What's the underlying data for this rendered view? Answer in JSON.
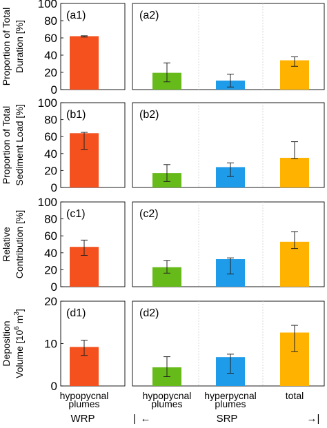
{
  "figure": {
    "x_category_labels": [
      [
        "hypopycnal",
        "plumes"
      ],
      [
        "hypopycnal",
        "plumes"
      ],
      [
        "hyperpycnal",
        "plumes"
      ],
      [
        "total"
      ]
    ],
    "bottom": {
      "wrp": "WRP",
      "sep": "|",
      "left_arrow": "←",
      "srp": "SRP",
      "right_arrow": "→|"
    }
  },
  "colors": {
    "wrp_hypopycnal": "#f4511e",
    "srp_hypopycnal": "#66bb1a",
    "srp_hyperpycnal": "#1e9be9",
    "srp_total": "#ffb300"
  },
  "chart_data": [
    {
      "type": "bar",
      "panels": [
        "(a1)",
        "(a2)"
      ],
      "ylabel_lines": [
        "Proportion of Total",
        "Duration [%]"
      ],
      "ylim": [
        0,
        100
      ],
      "yticks": [
        0,
        20,
        40,
        60,
        80,
        100
      ],
      "grid": "vertical dashed lines in right panel",
      "series": [
        {
          "name": "hypopycnal plumes (WRP)",
          "value": 62,
          "err_low": 61,
          "err_high": 62.5
        },
        {
          "name": "hypopycnal plumes (SRP)",
          "value": 19.5,
          "err_low": 9,
          "err_high": 31
        },
        {
          "name": "hyperpycnal plumes (SRP)",
          "value": 10.5,
          "err_low": 3,
          "err_high": 18
        },
        {
          "name": "total (SRP)",
          "value": 34,
          "err_low": 27,
          "err_high": 38
        }
      ]
    },
    {
      "type": "bar",
      "panels": [
        "(b1)",
        "(b2)"
      ],
      "ylabel_lines": [
        "Proportion of Total",
        "Sediment Load [%]"
      ],
      "ylim": [
        0,
        100
      ],
      "yticks": [
        0,
        20,
        40,
        60,
        80,
        100
      ],
      "series": [
        {
          "name": "hypopycnal plumes (WRP)",
          "value": 64,
          "err_low": 45,
          "err_high": 65
        },
        {
          "name": "hypopycnal plumes (SRP)",
          "value": 17,
          "err_low": 7,
          "err_high": 27
        },
        {
          "name": "hyperpycnal plumes (SRP)",
          "value": 24,
          "err_low": 13,
          "err_high": 29
        },
        {
          "name": "total (SRP)",
          "value": 35,
          "err_low": 34,
          "err_high": 54
        }
      ]
    },
    {
      "type": "bar",
      "panels": [
        "(c1)",
        "(c2)"
      ],
      "ylabel_lines": [
        "Relative",
        "Contribution [%]"
      ],
      "ylim": [
        0,
        100
      ],
      "yticks": [
        0,
        20,
        40,
        60,
        80,
        100
      ],
      "series": [
        {
          "name": "hypopycnal plumes (WRP)",
          "value": 47,
          "err_low": 37,
          "err_high": 55
        },
        {
          "name": "hypopycnal plumes (SRP)",
          "value": 23,
          "err_low": 16,
          "err_high": 31
        },
        {
          "name": "hyperpycnal plumes (SRP)",
          "value": 32.5,
          "err_low": 15,
          "err_high": 34
        },
        {
          "name": "total (SRP)",
          "value": 53,
          "err_low": 45,
          "err_high": 65
        }
      ]
    },
    {
      "type": "bar",
      "panels": [
        "(d1)",
        "(d2)"
      ],
      "ylabel_lines": [
        "Deposition",
        "Volume [10",
        "6",
        " m",
        "3",
        "]"
      ],
      "ylim": [
        0,
        20
      ],
      "yticks": [
        0,
        10,
        20
      ],
      "series": [
        {
          "name": "hypopycnal plumes (WRP)",
          "value": 9.2,
          "err_low": 7.2,
          "err_high": 10.8
        },
        {
          "name": "hypopycnal plumes (SRP)",
          "value": 4.4,
          "err_low": 2.2,
          "err_high": 6.9
        },
        {
          "name": "hyperpycnal plumes (SRP)",
          "value": 6.8,
          "err_low": 3.0,
          "err_high": 7.5
        },
        {
          "name": "total (SRP)",
          "value": 12.6,
          "err_low": 8.1,
          "err_high": 14.3
        }
      ]
    }
  ]
}
